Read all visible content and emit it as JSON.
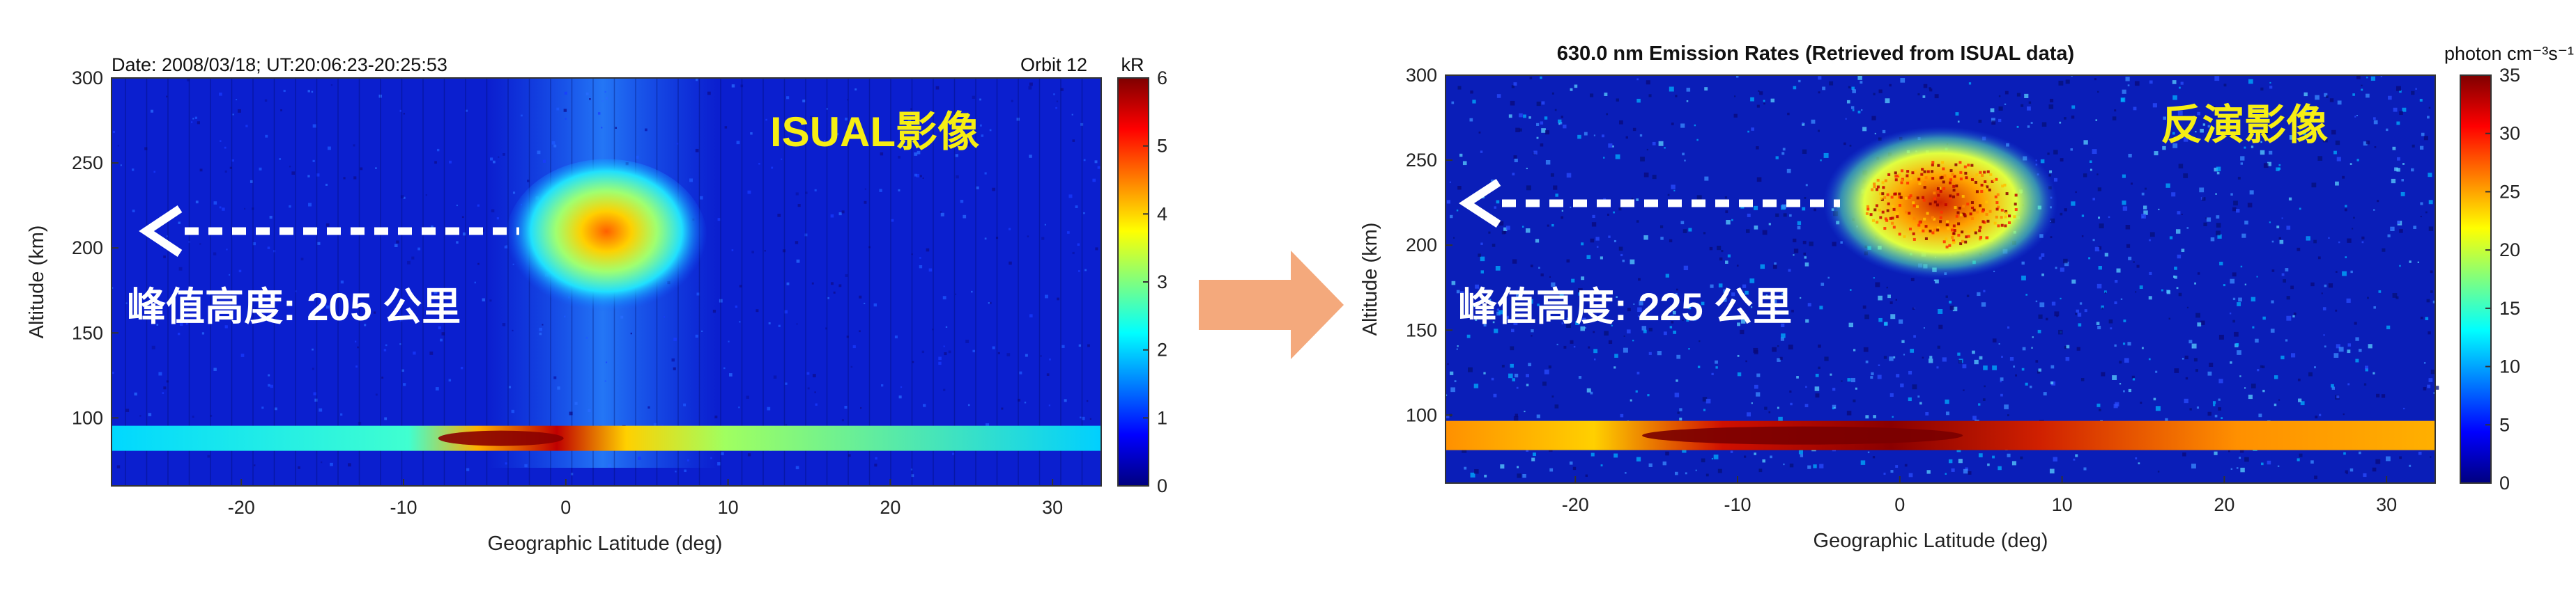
{
  "chart_data": [
    {
      "type": "heatmap",
      "header_left": "Date: 2008/03/18; UT:20:06:23-20:25:53",
      "header_right": "Orbit 12",
      "xlabel": "Geographic Latitude (deg)",
      "ylabel": "Altitude (km)",
      "xlim": [
        -28,
        33
      ],
      "ylim": [
        60,
        300
      ],
      "xticks": [
        -20,
        -10,
        0,
        10,
        20,
        30
      ],
      "yticks": [
        100,
        150,
        200,
        250,
        300
      ],
      "colorbar": {
        "unit": "kR",
        "min": 0,
        "max": 6,
        "ticks": [
          0,
          1,
          2,
          3,
          4,
          5,
          6
        ]
      },
      "overlay_label": "ISUAL影像",
      "peak_label": "峰值高度: 205 公里",
      "peak_altitude_km": 205,
      "airglow_layer": {
        "altitude_km": 88,
        "lat_range": [
          -28,
          33
        ]
      },
      "bright_patch": {
        "lat_range": [
          -2,
          7
        ],
        "alt_range": [
          185,
          255
        ],
        "peak_lat": 2,
        "peak_alt": 205
      },
      "arrow_direction": "left"
    },
    {
      "type": "heatmap",
      "title": "630.0 nm Emission Rates (Retrieved from ISUAL data)",
      "xlabel": "Geographic Latitude (deg)",
      "ylabel": "Altitude (km)",
      "xlim": [
        -28,
        33
      ],
      "ylim": [
        60,
        300
      ],
      "xticks": [
        -20,
        -10,
        0,
        10,
        20,
        30
      ],
      "yticks": [
        100,
        150,
        200,
        250,
        300
      ],
      "colorbar": {
        "unit": "photon cm⁻³s⁻¹",
        "min": 0,
        "max": 35,
        "ticks": [
          0,
          5,
          10,
          15,
          20,
          25,
          30,
          35
        ]
      },
      "overlay_label": "反演影像",
      "peak_label": "峰值高度: 225 公里",
      "peak_altitude_km": 225,
      "airglow_layer": {
        "altitude_km": 88,
        "lat_range": [
          -28,
          33
        ]
      },
      "bright_patch": {
        "lat_range": [
          -3,
          8
        ],
        "alt_range": [
          195,
          260
        ],
        "peak_lat": 2,
        "peak_alt": 225
      },
      "arrow_direction": "left"
    }
  ],
  "colors": {
    "jet": [
      "#00007f",
      "#0000ff",
      "#007fff",
      "#00ffff",
      "#7fff7f",
      "#ffff00",
      "#ff7f00",
      "#ff0000",
      "#7f0000"
    ],
    "middle_arrow": "#f4a97c",
    "overlay_label": "#f6ee14",
    "peak_label": "#ffffff"
  }
}
